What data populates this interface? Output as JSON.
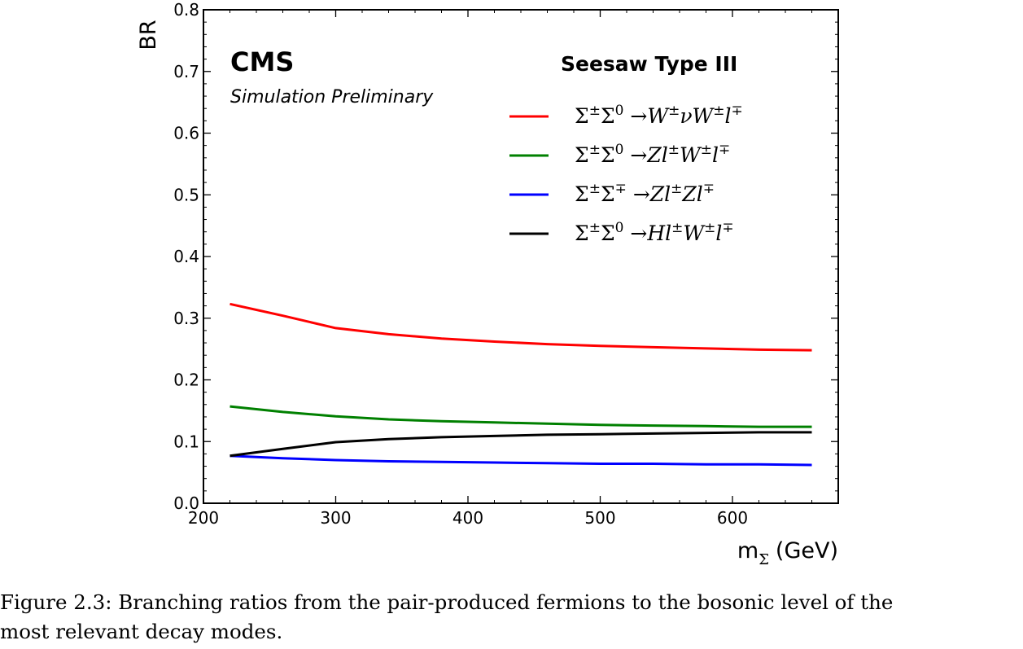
{
  "chart_data": {
    "type": "line",
    "top_label": "CMS",
    "sub_label": "Simulation Preliminary",
    "legend_title": "Seesaw Type III",
    "xlabel": "m",
    "xlabel_subscript": "Σ",
    "xlabel_unit": "(GeV)",
    "ylabel": "BR",
    "xlim": [
      200,
      680
    ],
    "ylim": [
      0.0,
      0.8
    ],
    "xticks": [
      200,
      300,
      400,
      500,
      600
    ],
    "yticks": [
      "0.0",
      "0.1",
      "0.2",
      "0.3",
      "0.4",
      "0.5",
      "0.6",
      "0.7",
      "0.8"
    ],
    "x": [
      220,
      260,
      300,
      340,
      380,
      420,
      460,
      500,
      540,
      580,
      620,
      660
    ],
    "series": [
      {
        "name_parts": [
          "Σ",
          "±",
          "Σ",
          "0",
          " →",
          "W",
          "±",
          "νW",
          "±",
          "l",
          "∓"
        ],
        "color": "#ff0000",
        "values": [
          0.323,
          0.304,
          0.284,
          0.274,
          0.267,
          0.262,
          0.258,
          0.255,
          0.253,
          0.251,
          0.249,
          0.248
        ]
      },
      {
        "name_parts": [
          "Σ",
          "±",
          "Σ",
          "0",
          " →",
          "Zl",
          "±",
          "W",
          "±",
          "l",
          "∓"
        ],
        "color": "#008000",
        "values": [
          0.157,
          0.148,
          0.141,
          0.136,
          0.133,
          0.131,
          0.129,
          0.127,
          0.126,
          0.125,
          0.124,
          0.124
        ]
      },
      {
        "name_parts": [
          "Σ",
          "±",
          "Σ",
          "∓",
          " →",
          "Zl",
          "±",
          "Zl",
          "∓",
          "",
          ""
        ],
        "color": "#0000ff",
        "values": [
          0.077,
          0.073,
          0.07,
          0.068,
          0.067,
          0.066,
          0.065,
          0.064,
          0.064,
          0.063,
          0.063,
          0.062
        ]
      },
      {
        "name_parts": [
          "Σ",
          "±",
          "Σ",
          "0",
          " →",
          "Hl",
          "±",
          "W",
          "±",
          "l",
          "∓"
        ],
        "color": "#000000",
        "values": [
          0.077,
          0.088,
          0.099,
          0.104,
          0.107,
          0.109,
          0.111,
          0.112,
          0.113,
          0.114,
          0.115,
          0.115
        ]
      }
    ]
  },
  "caption": {
    "line1": "Figure 2.3: Branching ratios from the pair-produced fermions to the bosonic level of the",
    "line2": "most relevant decay modes."
  }
}
